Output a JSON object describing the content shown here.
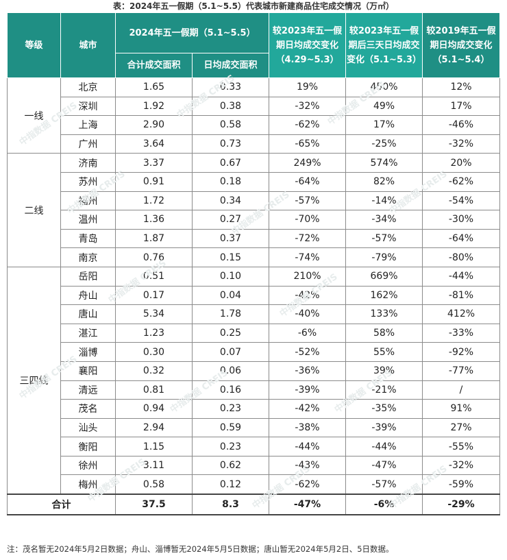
{
  "title": "表：2024年五一假期（5.1~5.5）代表城市新建商品住宅成交情况（万㎡）",
  "headers": {
    "grade": "等级",
    "city": "城市",
    "period_2024": "2024年五一假期（5.1~5.5）",
    "total_area": "合计成交面积",
    "daily_area": "日均成交面积",
    "vs_2023_holiday": "较2023年五一假期日均成交变化（4.29~5.3）",
    "vs_2023_after": "较2023年五一假期后三天日均成交变化（5.1~5.3）",
    "vs_2019": "较2019年五一假期日均成交变化（5.1~5.4）"
  },
  "groups": [
    {
      "grade": "一线",
      "rows": [
        {
          "city": "北京",
          "total": "1.65",
          "daily": "0.33",
          "c1": "19%",
          "c2": "450%",
          "c3": "12%"
        },
        {
          "city": "深圳",
          "total": "1.92",
          "daily": "0.38",
          "c1": "-32%",
          "c2": "49%",
          "c3": "17%"
        },
        {
          "city": "上海",
          "total": "2.90",
          "daily": "0.58",
          "c1": "-62%",
          "c2": "17%",
          "c3": "-46%"
        },
        {
          "city": "广州",
          "total": "3.64",
          "daily": "0.73",
          "c1": "-65%",
          "c2": "-25%",
          "c3": "-32%"
        }
      ]
    },
    {
      "grade": "二线",
      "rows": [
        {
          "city": "济南",
          "total": "3.37",
          "daily": "0.67",
          "c1": "249%",
          "c2": "574%",
          "c3": "20%"
        },
        {
          "city": "苏州",
          "total": "0.91",
          "daily": "0.18",
          "c1": "-64%",
          "c2": "82%",
          "c3": "-62%"
        },
        {
          "city": "福州",
          "total": "1.72",
          "daily": "0.34",
          "c1": "-57%",
          "c2": "-14%",
          "c3": "-54%"
        },
        {
          "city": "温州",
          "total": "1.36",
          "daily": "0.27",
          "c1": "-70%",
          "c2": "-34%",
          "c3": "-30%"
        },
        {
          "city": "青岛",
          "total": "1.87",
          "daily": "0.37",
          "c1": "-72%",
          "c2": "-57%",
          "c3": "-64%"
        },
        {
          "city": "南京",
          "total": "0.76",
          "daily": "0.15",
          "c1": "-74%",
          "c2": "-79%",
          "c3": "-80%"
        }
      ]
    },
    {
      "grade": "三四线",
      "rows": [
        {
          "city": "岳阳",
          "total": "0.51",
          "daily": "0.10",
          "c1": "210%",
          "c2": "669%",
          "c3": "-44%"
        },
        {
          "city": "舟山",
          "total": "0.17",
          "daily": "0.04",
          "c1": "-42%",
          "c2": "162%",
          "c3": "-81%"
        },
        {
          "city": "唐山",
          "total": "5.34",
          "daily": "1.78",
          "c1": "-40%",
          "c2": "133%",
          "c3": "412%"
        },
        {
          "city": "湛江",
          "total": "1.23",
          "daily": "0.25",
          "c1": "-6%",
          "c2": "58%",
          "c3": "-33%"
        },
        {
          "city": "淄博",
          "total": "0.30",
          "daily": "0.07",
          "c1": "-52%",
          "c2": "55%",
          "c3": "-92%"
        },
        {
          "city": "襄阳",
          "total": "0.32",
          "daily": "0.06",
          "c1": "-36%",
          "c2": "39%",
          "c3": "-77%"
        },
        {
          "city": "清远",
          "total": "0.81",
          "daily": "0.16",
          "c1": "-39%",
          "c2": "-21%",
          "c3": "/"
        },
        {
          "city": "茂名",
          "total": "0.94",
          "daily": "0.23",
          "c1": "-42%",
          "c2": "-35%",
          "c3": "91%"
        },
        {
          "city": "汕头",
          "total": "2.94",
          "daily": "0.59",
          "c1": "-38%",
          "c2": "-39%",
          "c3": "27%"
        },
        {
          "city": "衡阳",
          "total": "1.15",
          "daily": "0.23",
          "c1": "-44%",
          "c2": "-44%",
          "c3": "-55%"
        },
        {
          "city": "徐州",
          "total": "3.11",
          "daily": "0.62",
          "c1": "-43%",
          "c2": "-47%",
          "c3": "-32%"
        },
        {
          "city": "梅州",
          "total": "0.58",
          "daily": "0.12",
          "c1": "-62%",
          "c2": "-57%",
          "c3": "-59%"
        }
      ]
    }
  ],
  "total_row": {
    "label": "合计",
    "total": "37.5",
    "daily": "8.3",
    "c1": "-47%",
    "c2": "-6%",
    "c3": "-29%"
  },
  "note": "注：茂名暂无2024年5月2日数据；舟山、淄博暂无2024年5月5日数据；唐山暂无2024年5月2日、5日数据。",
  "watermark": "中指数据 CREIS",
  "colors": {
    "header_dark": "#1f8f84",
    "header_light": "#22a89b"
  }
}
